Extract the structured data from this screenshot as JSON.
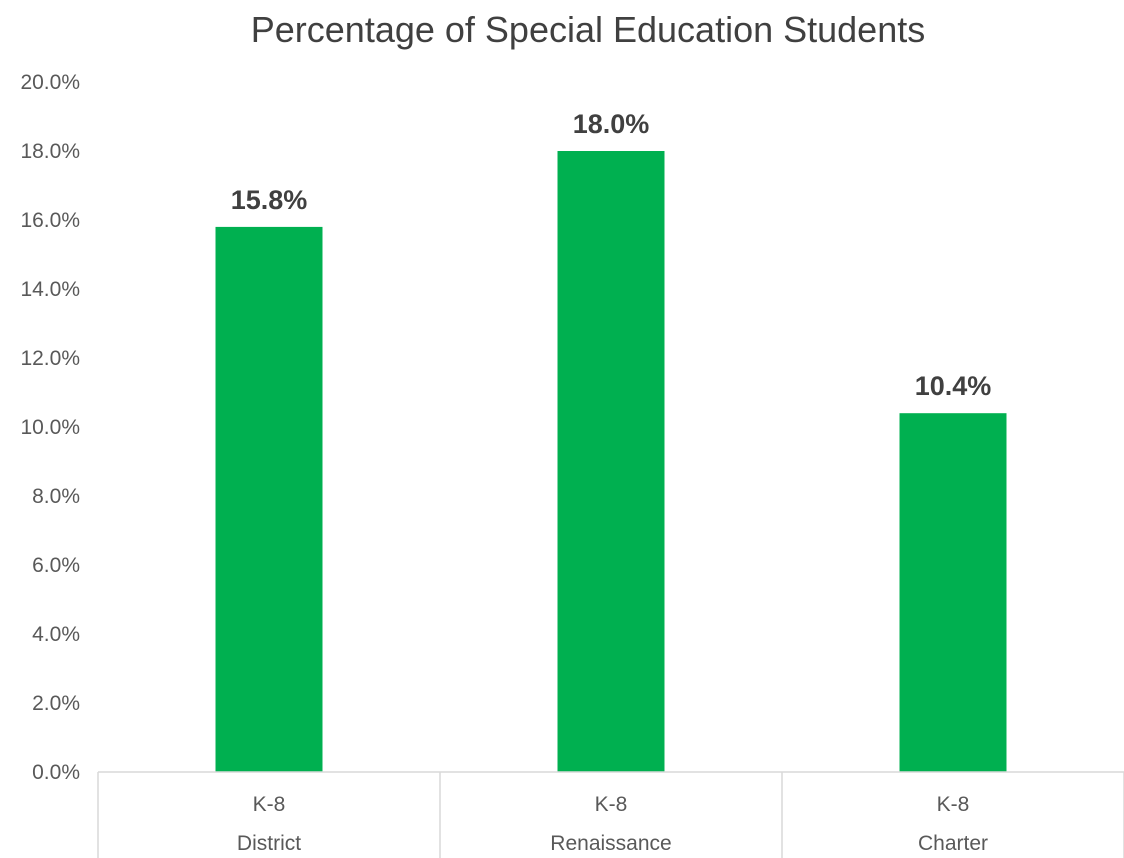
{
  "chart_data": {
    "type": "bar",
    "title": "Percentage of Special Education Students",
    "categories": [
      {
        "level": "K-8",
        "group": "District"
      },
      {
        "level": "K-8",
        "group": "Renaissance"
      },
      {
        "level": "K-8",
        "group": "Charter"
      }
    ],
    "values": [
      15.8,
      18.0,
      10.4
    ],
    "data_labels": [
      "15.8%",
      "18.0%",
      "10.4%"
    ],
    "ylim": [
      0,
      20
    ],
    "yticks": [
      "0.0%",
      "2.0%",
      "4.0%",
      "6.0%",
      "8.0%",
      "10.0%",
      "12.0%",
      "14.0%",
      "16.0%",
      "18.0%",
      "20.0%"
    ],
    "xlabel": "",
    "ylabel": "",
    "grid": false,
    "legend": "none",
    "bar_color": "#00B050"
  }
}
